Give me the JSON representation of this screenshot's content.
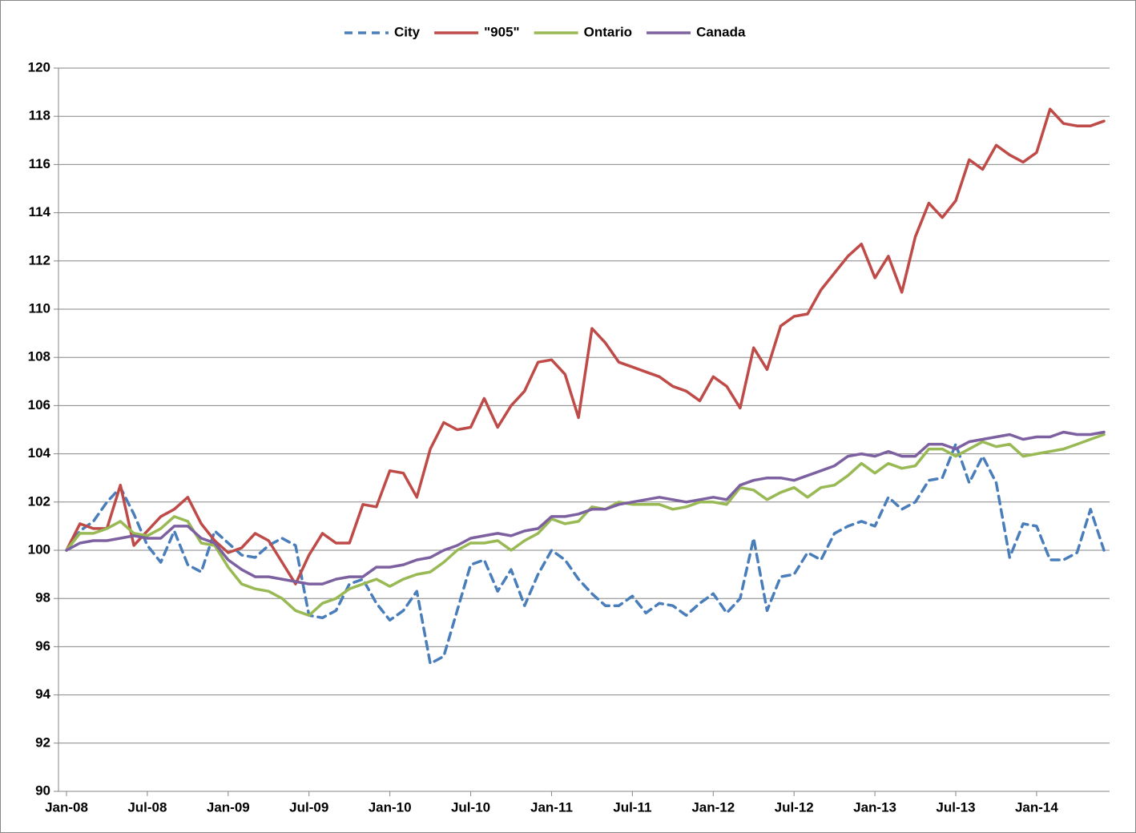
{
  "chart_data": {
    "type": "line",
    "categories": [
      "Jan-08",
      null,
      null,
      null,
      null,
      null,
      "Jul-08",
      null,
      null,
      null,
      null,
      null,
      "Jan-09",
      null,
      null,
      null,
      null,
      null,
      "Jul-09",
      null,
      null,
      null,
      null,
      null,
      "Jan-10",
      null,
      null,
      null,
      null,
      null,
      "Jul-10",
      null,
      null,
      null,
      null,
      null,
      "Jan-11",
      null,
      null,
      null,
      null,
      null,
      "Jul-11",
      null,
      null,
      null,
      null,
      null,
      "Jan-12",
      null,
      null,
      null,
      null,
      null,
      "Jul-12",
      null,
      null,
      null,
      null,
      null,
      "Jan-13",
      null,
      null,
      null,
      null,
      null,
      "Jul-13",
      null,
      null,
      null,
      null,
      null,
      "Jan-14",
      null,
      null,
      null,
      null,
      null
    ],
    "series": [
      {
        "name": "City",
        "color": "#4a7ebb",
        "dashed": true,
        "values": [
          100,
          100.8,
          101.2,
          102,
          102.6,
          101.5,
          100.2,
          99.5,
          100.8,
          99.4,
          99.1,
          100.8,
          100.3,
          99.8,
          99.7,
          100.2,
          100.5,
          100.2,
          97.3,
          97.2,
          97.5,
          98.6,
          98.8,
          97.8,
          97.1,
          97.5,
          98.3,
          95.3,
          95.6,
          97.5,
          99.4,
          99.6,
          98.3,
          99.2,
          97.7,
          99.0,
          100.0,
          99.6,
          98.8,
          98.2,
          97.7,
          97.7,
          98.1,
          97.4,
          97.8,
          97.7,
          97.3,
          97.8,
          98.2,
          97.4,
          98.0,
          100.5,
          97.5,
          98.9,
          99.0,
          99.9,
          99.6,
          100.7,
          101.0,
          101.2,
          101.0,
          102.2,
          101.7,
          102.0,
          102.9,
          103.0,
          104.4,
          102.8,
          103.9,
          102.8,
          99.7,
          101.1,
          101.0,
          99.6,
          99.6,
          99.9,
          101.7,
          100.0
        ]
      },
      {
        "name": "\"905\"",
        "color": "#be4b48",
        "dashed": false,
        "values": [
          100,
          101.1,
          100.9,
          100.9,
          102.7,
          100.2,
          100.8,
          101.4,
          101.7,
          102.2,
          101.1,
          100.4,
          99.9,
          100.1,
          100.7,
          100.4,
          99.5,
          98.6,
          99.8,
          100.7,
          100.3,
          100.3,
          101.9,
          101.8,
          103.3,
          103.2,
          102.2,
          104.2,
          105.3,
          105.0,
          105.1,
          106.3,
          105.1,
          106.0,
          106.6,
          107.8,
          107.9,
          107.3,
          105.5,
          109.2,
          108.6,
          107.8,
          107.6,
          107.4,
          107.2,
          106.8,
          106.6,
          106.2,
          107.2,
          106.8,
          105.9,
          108.4,
          107.5,
          109.3,
          109.7,
          109.8,
          110.8,
          111.5,
          112.2,
          112.7,
          111.3,
          112.2,
          110.7,
          113.0,
          114.4,
          113.8,
          114.5,
          116.2,
          115.8,
          116.8,
          116.4,
          116.1,
          116.5,
          118.3,
          117.7,
          117.6,
          117.6,
          117.8
        ]
      },
      {
        "name": "Ontario",
        "color": "#98b954",
        "dashed": false,
        "values": [
          100,
          100.7,
          100.7,
          100.9,
          101.2,
          100.7,
          100.6,
          100.9,
          101.4,
          101.2,
          100.3,
          100.2,
          99.3,
          98.6,
          98.4,
          98.3,
          98.0,
          97.5,
          97.3,
          97.8,
          98.0,
          98.4,
          98.6,
          98.8,
          98.5,
          98.8,
          99.0,
          99.1,
          99.5,
          100.0,
          100.3,
          100.3,
          100.4,
          100.0,
          100.4,
          100.7,
          101.3,
          101.1,
          101.2,
          101.8,
          101.7,
          102.0,
          101.9,
          101.9,
          101.9,
          101.7,
          101.8,
          102.0,
          102.0,
          101.9,
          102.6,
          102.5,
          102.1,
          102.4,
          102.6,
          102.2,
          102.6,
          102.7,
          103.1,
          103.6,
          103.2,
          103.6,
          103.4,
          103.5,
          104.2,
          104.2,
          103.9,
          104.2,
          104.5,
          104.3,
          104.4,
          103.9,
          104.0,
          104.1,
          104.2,
          104.4,
          104.6,
          104.8
        ]
      },
      {
        "name": "Canada",
        "color": "#7d60a0",
        "dashed": false,
        "values": [
          100,
          100.3,
          100.4,
          100.4,
          100.5,
          100.6,
          100.5,
          100.5,
          101.0,
          101.0,
          100.5,
          100.3,
          99.6,
          99.2,
          98.9,
          98.9,
          98.8,
          98.7,
          98.6,
          98.6,
          98.8,
          98.9,
          98.9,
          99.3,
          99.3,
          99.4,
          99.6,
          99.7,
          100.0,
          100.2,
          100.5,
          100.6,
          100.7,
          100.6,
          100.8,
          100.9,
          101.4,
          101.4,
          101.5,
          101.7,
          101.7,
          101.9,
          102.0,
          102.1,
          102.2,
          102.1,
          102.0,
          102.1,
          102.2,
          102.1,
          102.7,
          102.9,
          103.0,
          103.0,
          102.9,
          103.1,
          103.3,
          103.5,
          103.9,
          104.0,
          103.9,
          104.1,
          103.9,
          103.9,
          104.4,
          104.4,
          104.2,
          104.5,
          104.6,
          104.7,
          104.8,
          104.6,
          104.7,
          104.7,
          104.9,
          104.8,
          104.8,
          104.9
        ]
      }
    ],
    "ylim": [
      90,
      120
    ],
    "yticks": [
      90,
      92,
      94,
      96,
      98,
      100,
      102,
      104,
      106,
      108,
      110,
      112,
      114,
      116,
      118,
      120
    ],
    "grid": true,
    "legend": "top"
  }
}
